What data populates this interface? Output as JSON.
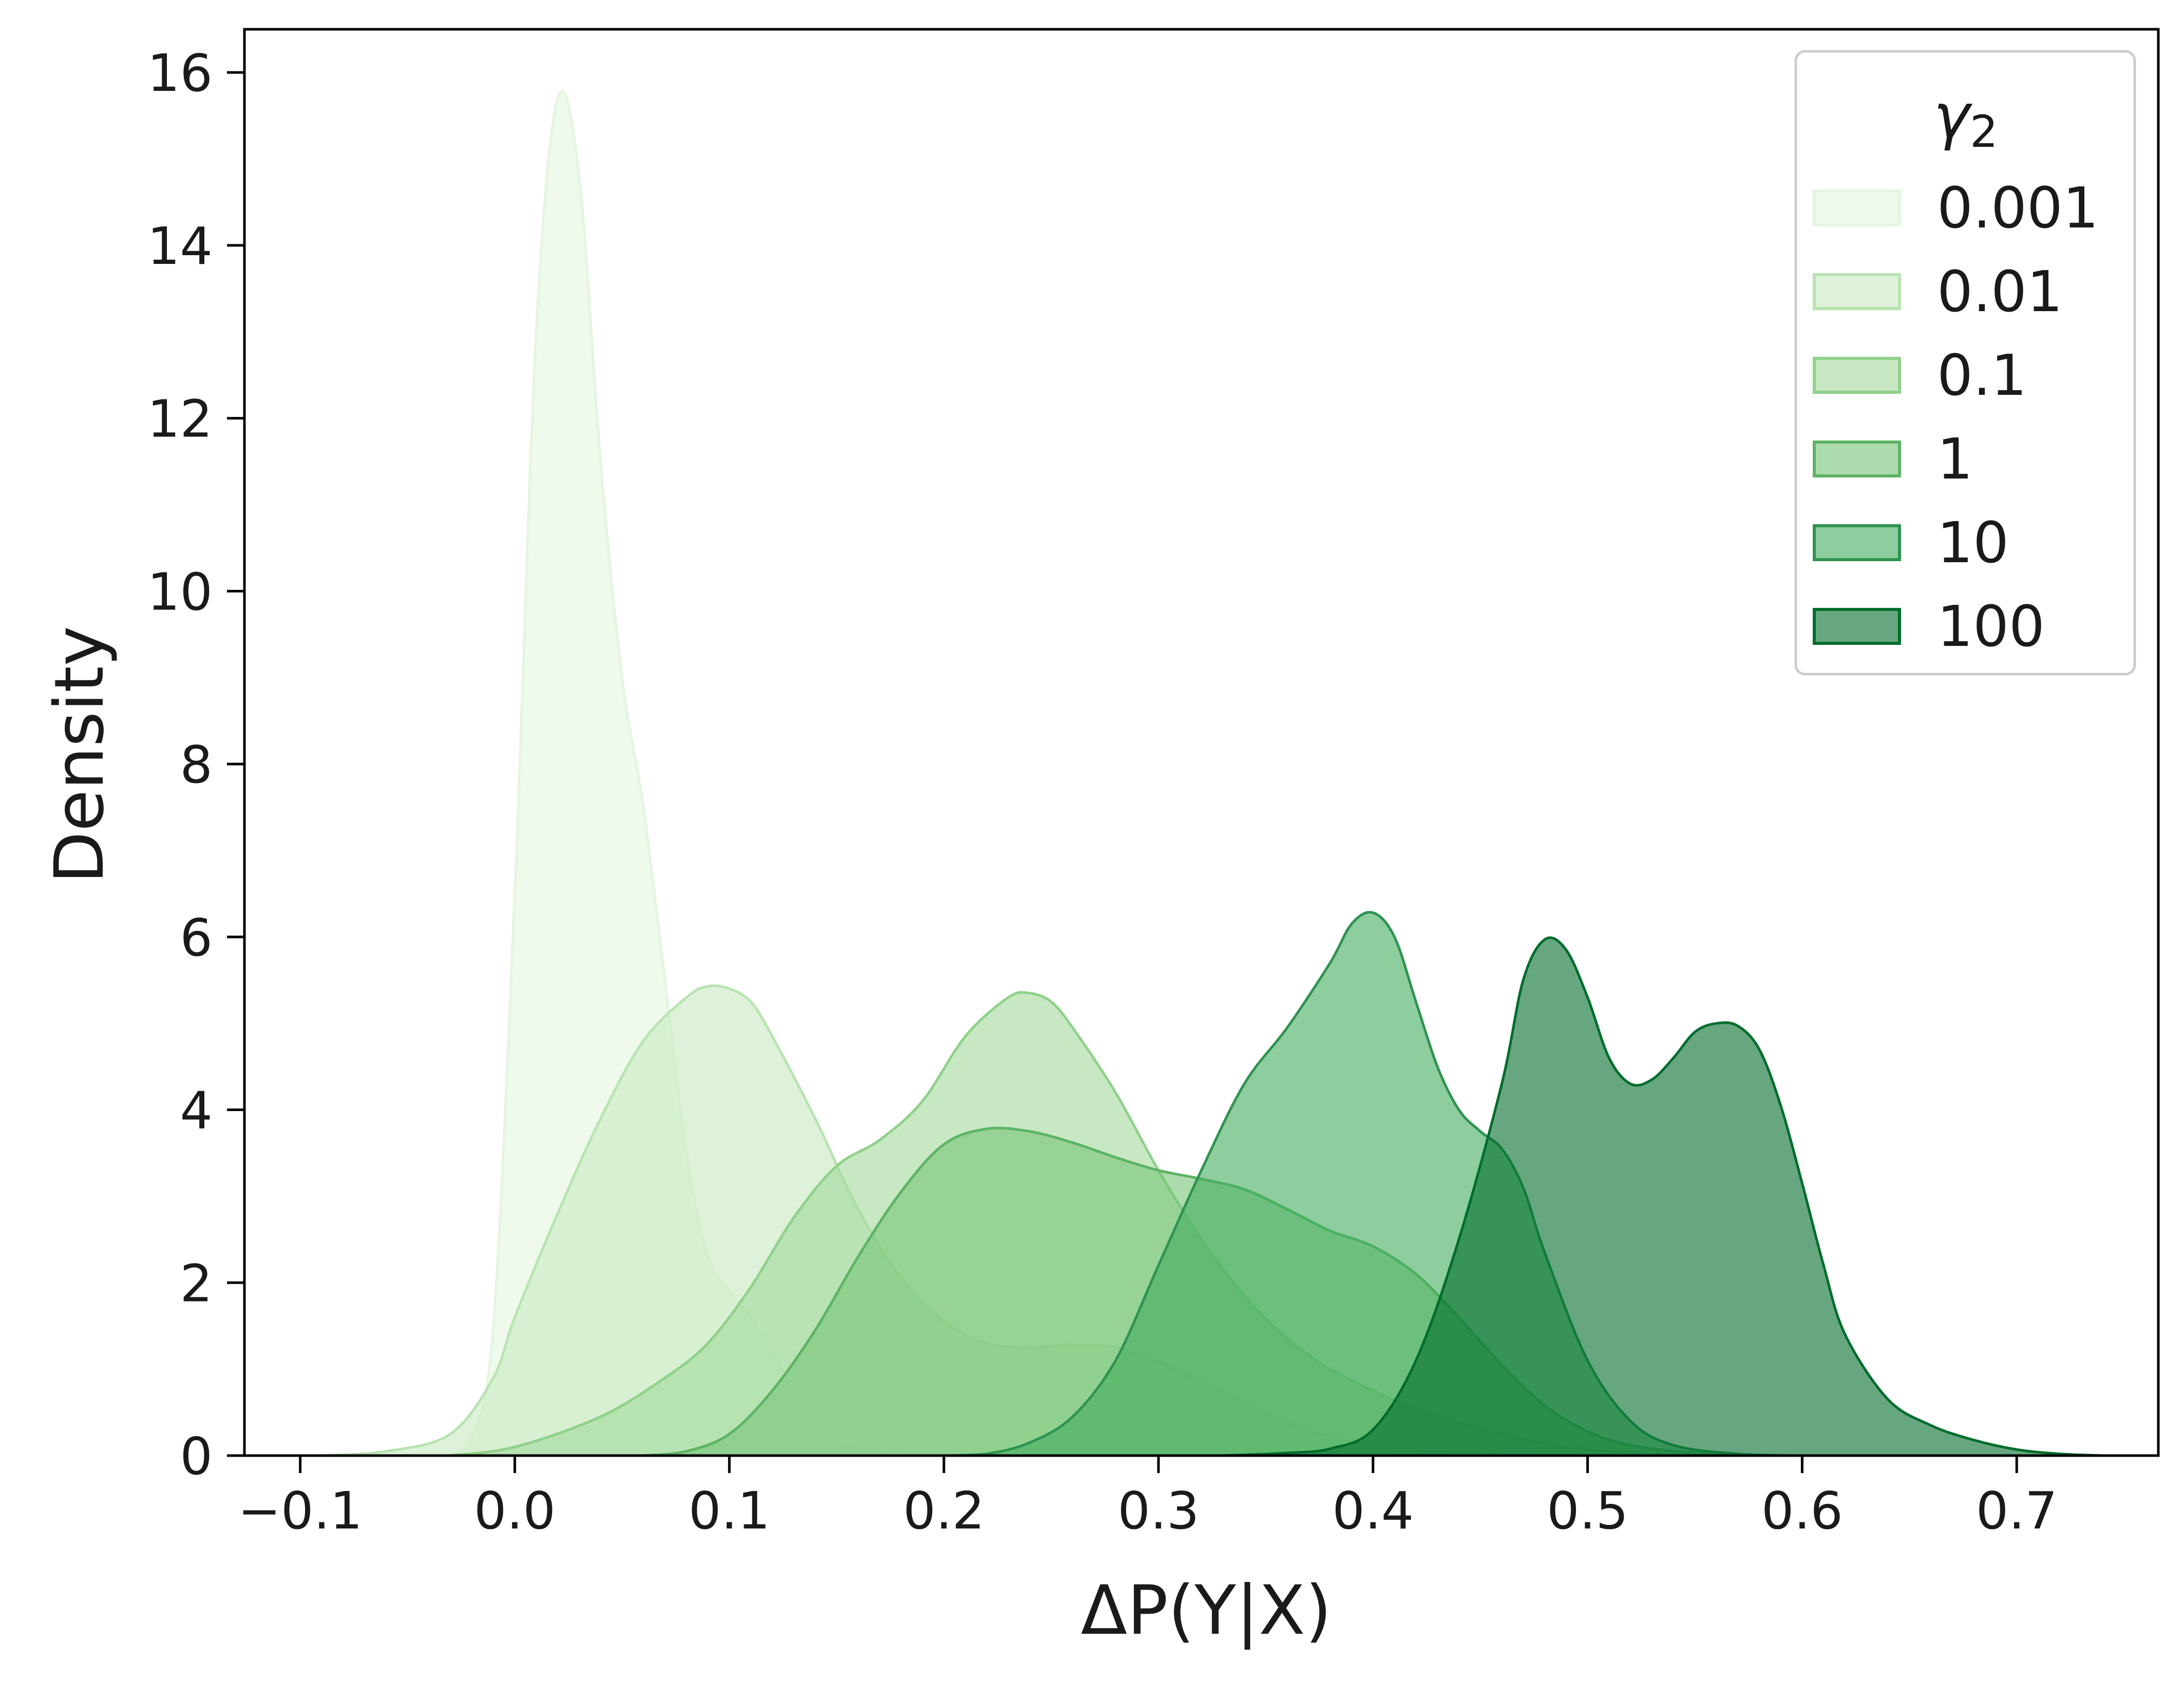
{
  "chart_data": {
    "type": "area",
    "xlabel": "ΔP(Y|X)",
    "ylabel": "Density",
    "xlim": [
      -0.126,
      0.766
    ],
    "ylim": [
      0,
      16.5
    ],
    "x_ticks": [
      -0.1,
      0.0,
      0.1,
      0.2,
      0.3,
      0.4,
      0.5,
      0.6,
      0.7
    ],
    "x_tick_labels": [
      "−0.1",
      "0.0",
      "0.1",
      "0.2",
      "0.3",
      "0.4",
      "0.5",
      "0.6",
      "0.7"
    ],
    "y_ticks": [
      0,
      2,
      4,
      6,
      8,
      10,
      12,
      14,
      16
    ],
    "y_tick_labels": [
      "0",
      "2",
      "4",
      "6",
      "8",
      "10",
      "12",
      "14",
      "16"
    ],
    "grid": false,
    "legend": {
      "title": "γ",
      "title_subscript": "2",
      "placement": "top-right"
    },
    "series": [
      {
        "name": "0.001",
        "fill": "#e5f5e0",
        "stroke": "#e5f5e0",
        "points": [
          [
            -0.03,
            0
          ],
          [
            -0.02,
            0.2
          ],
          [
            -0.01,
            1.5
          ],
          [
            0.0,
            6.5
          ],
          [
            0.01,
            13.0
          ],
          [
            0.02,
            15.7
          ],
          [
            0.03,
            14.8
          ],
          [
            0.04,
            11.5
          ],
          [
            0.05,
            9.0
          ],
          [
            0.06,
            7.5
          ],
          [
            0.07,
            5.5
          ],
          [
            0.08,
            3.5
          ],
          [
            0.09,
            2.3
          ],
          [
            0.1,
            1.9
          ],
          [
            0.11,
            1.6
          ],
          [
            0.12,
            1.2
          ],
          [
            0.13,
            0.75
          ],
          [
            0.14,
            0.35
          ],
          [
            0.15,
            0.15
          ],
          [
            0.17,
            0.05
          ],
          [
            0.2,
            0.01
          ],
          [
            0.23,
            0
          ]
        ]
      },
      {
        "name": "0.01",
        "fill": "#c7e9c0",
        "stroke": "#b8e3b0",
        "points": [
          [
            -0.09,
            0
          ],
          [
            -0.06,
            0.05
          ],
          [
            -0.03,
            0.25
          ],
          [
            -0.01,
            0.9
          ],
          [
            0.0,
            1.6
          ],
          [
            0.02,
            2.8
          ],
          [
            0.04,
            3.9
          ],
          [
            0.06,
            4.8
          ],
          [
            0.08,
            5.3
          ],
          [
            0.09,
            5.43
          ],
          [
            0.1,
            5.4
          ],
          [
            0.11,
            5.25
          ],
          [
            0.12,
            4.85
          ],
          [
            0.14,
            3.9
          ],
          [
            0.16,
            2.85
          ],
          [
            0.18,
            2.05
          ],
          [
            0.2,
            1.55
          ],
          [
            0.22,
            1.3
          ],
          [
            0.24,
            1.25
          ],
          [
            0.26,
            1.28
          ],
          [
            0.28,
            1.25
          ],
          [
            0.3,
            1.08
          ],
          [
            0.32,
            0.85
          ],
          [
            0.34,
            0.6
          ],
          [
            0.36,
            0.38
          ],
          [
            0.38,
            0.22
          ],
          [
            0.4,
            0.12
          ],
          [
            0.43,
            0.05
          ],
          [
            0.47,
            0
          ]
        ]
      },
      {
        "name": "0.1",
        "fill": "#a1d99b",
        "stroke": "#8fd18a",
        "points": [
          [
            -0.03,
            0
          ],
          [
            0.0,
            0.1
          ],
          [
            0.04,
            0.45
          ],
          [
            0.07,
            0.9
          ],
          [
            0.09,
            1.3
          ],
          [
            0.11,
            1.95
          ],
          [
            0.13,
            2.75
          ],
          [
            0.15,
            3.35
          ],
          [
            0.17,
            3.65
          ],
          [
            0.19,
            4.1
          ],
          [
            0.21,
            4.85
          ],
          [
            0.23,
            5.3
          ],
          [
            0.24,
            5.35
          ],
          [
            0.25,
            5.25
          ],
          [
            0.26,
            4.95
          ],
          [
            0.28,
            4.2
          ],
          [
            0.3,
            3.3
          ],
          [
            0.32,
            2.5
          ],
          [
            0.34,
            1.85
          ],
          [
            0.36,
            1.35
          ],
          [
            0.38,
            1.0
          ],
          [
            0.4,
            0.75
          ],
          [
            0.42,
            0.55
          ],
          [
            0.44,
            0.38
          ],
          [
            0.46,
            0.25
          ],
          [
            0.48,
            0.14
          ],
          [
            0.5,
            0.07
          ],
          [
            0.53,
            0.02
          ],
          [
            0.56,
            0
          ]
        ]
      },
      {
        "name": "1",
        "fill": "#74c476",
        "stroke": "#5db364",
        "points": [
          [
            0.06,
            0
          ],
          [
            0.08,
            0.05
          ],
          [
            0.1,
            0.25
          ],
          [
            0.12,
            0.75
          ],
          [
            0.14,
            1.45
          ],
          [
            0.16,
            2.3
          ],
          [
            0.18,
            3.05
          ],
          [
            0.2,
            3.6
          ],
          [
            0.22,
            3.78
          ],
          [
            0.24,
            3.75
          ],
          [
            0.26,
            3.62
          ],
          [
            0.28,
            3.45
          ],
          [
            0.3,
            3.3
          ],
          [
            0.32,
            3.2
          ],
          [
            0.34,
            3.08
          ],
          [
            0.36,
            2.85
          ],
          [
            0.38,
            2.6
          ],
          [
            0.4,
            2.42
          ],
          [
            0.42,
            2.1
          ],
          [
            0.44,
            1.6
          ],
          [
            0.46,
            1.05
          ],
          [
            0.48,
            0.58
          ],
          [
            0.5,
            0.28
          ],
          [
            0.52,
            0.12
          ],
          [
            0.55,
            0.03
          ],
          [
            0.58,
            0
          ]
        ]
      },
      {
        "name": "10",
        "fill": "#41ab5d",
        "stroke": "#2f9350",
        "points": [
          [
            0.2,
            0
          ],
          [
            0.22,
            0.02
          ],
          [
            0.24,
            0.15
          ],
          [
            0.26,
            0.45
          ],
          [
            0.28,
            1.1
          ],
          [
            0.3,
            2.2
          ],
          [
            0.32,
            3.3
          ],
          [
            0.34,
            4.3
          ],
          [
            0.36,
            4.95
          ],
          [
            0.38,
            5.7
          ],
          [
            0.39,
            6.15
          ],
          [
            0.4,
            6.28
          ],
          [
            0.41,
            6.0
          ],
          [
            0.42,
            5.25
          ],
          [
            0.43,
            4.5
          ],
          [
            0.44,
            4.0
          ],
          [
            0.45,
            3.75
          ],
          [
            0.46,
            3.55
          ],
          [
            0.47,
            3.1
          ],
          [
            0.48,
            2.35
          ],
          [
            0.5,
            1.1
          ],
          [
            0.52,
            0.4
          ],
          [
            0.54,
            0.12
          ],
          [
            0.57,
            0.02
          ],
          [
            0.6,
            0
          ]
        ]
      },
      {
        "name": "100",
        "fill": "#006d2c",
        "stroke": "#006d2c",
        "points": [
          [
            0.33,
            0
          ],
          [
            0.36,
            0.03
          ],
          [
            0.38,
            0.08
          ],
          [
            0.4,
            0.3
          ],
          [
            0.42,
            1.1
          ],
          [
            0.44,
            2.5
          ],
          [
            0.46,
            4.3
          ],
          [
            0.47,
            5.5
          ],
          [
            0.48,
            5.97
          ],
          [
            0.49,
            5.85
          ],
          [
            0.5,
            5.3
          ],
          [
            0.51,
            4.6
          ],
          [
            0.52,
            4.3
          ],
          [
            0.53,
            4.35
          ],
          [
            0.54,
            4.6
          ],
          [
            0.55,
            4.9
          ],
          [
            0.56,
            5.0
          ],
          [
            0.57,
            4.97
          ],
          [
            0.58,
            4.7
          ],
          [
            0.59,
            4.05
          ],
          [
            0.6,
            3.15
          ],
          [
            0.61,
            2.2
          ],
          [
            0.62,
            1.4
          ],
          [
            0.64,
            0.65
          ],
          [
            0.66,
            0.35
          ],
          [
            0.68,
            0.18
          ],
          [
            0.7,
            0.07
          ],
          [
            0.72,
            0.02
          ],
          [
            0.74,
            0
          ]
        ]
      }
    ]
  }
}
